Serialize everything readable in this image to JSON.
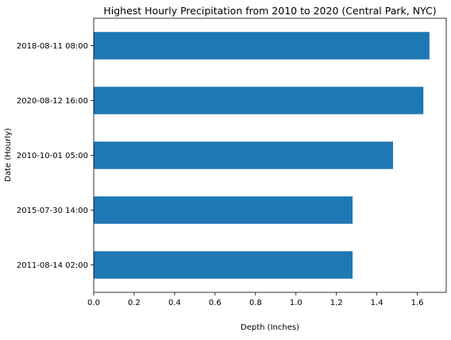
{
  "chart_data": {
    "type": "bar",
    "orientation": "horizontal",
    "title": "Highest Hourly Precipitation from 2010 to 2020 (Central Park, NYC)",
    "xlabel": "Depth (Inches)",
    "ylabel": "Date (Hourly)",
    "categories": [
      "2018-08-11 08:00",
      "2020-08-12 16:00",
      "2010-10-01 05:00",
      "2015-07-30 14:00",
      "2011-08-14 02:00"
    ],
    "values": [
      1.66,
      1.63,
      1.48,
      1.28,
      1.28
    ],
    "xlim": [
      0,
      1.743
    ],
    "xticks": [
      "0.0",
      "0.2",
      "0.4",
      "0.6",
      "0.8",
      "1.0",
      "1.2",
      "1.4",
      "1.6"
    ],
    "grid": false,
    "legend": "none",
    "bar_color": "#1f77b4"
  }
}
